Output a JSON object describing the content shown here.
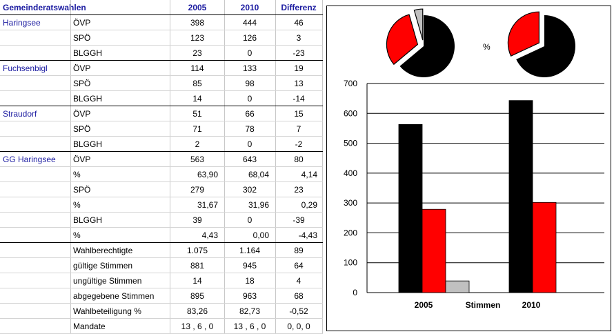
{
  "table": {
    "title": "Gemeinderatswahlen",
    "columns": [
      "2005",
      "2010",
      "Differenz"
    ],
    "rows": [
      {
        "group": "Haringsee",
        "label": "ÖVP",
        "v2005": "398",
        "v2010": "444",
        "diff": "46"
      },
      {
        "group": "",
        "label": "SPÖ",
        "v2005": "123",
        "v2010": "126",
        "diff": "3"
      },
      {
        "group": "",
        "label": "BLGGH",
        "v2005": "23",
        "v2010": "0",
        "diff": "-23"
      },
      {
        "group": "Fuchsenbigl",
        "label": "ÖVP",
        "v2005": "114",
        "v2010": "133",
        "diff": "19"
      },
      {
        "group": "",
        "label": "SPÖ",
        "v2005": "85",
        "v2010": "98",
        "diff": "13"
      },
      {
        "group": "",
        "label": "BLGGH",
        "v2005": "14",
        "v2010": "0",
        "diff": "-14"
      },
      {
        "group": "Straudorf",
        "label": "ÖVP",
        "v2005": "51",
        "v2010": "66",
        "diff": "15"
      },
      {
        "group": "",
        "label": "SPÖ",
        "v2005": "71",
        "v2010": "78",
        "diff": "7"
      },
      {
        "group": "",
        "label": "BLGGH",
        "v2005": "2",
        "v2010": "0",
        "diff": "-2"
      },
      {
        "group": "GG Haringsee",
        "label": "ÖVP",
        "v2005": "563",
        "v2010": "643",
        "diff": "80"
      },
      {
        "group": "",
        "label": "%",
        "v2005": "63,90",
        "v2010": "68,04",
        "diff": "4,14"
      },
      {
        "group": "",
        "label": "SPÖ",
        "v2005": "279",
        "v2010": "302",
        "diff": "23"
      },
      {
        "group": "",
        "label": "%",
        "v2005": "31,67",
        "v2010": "31,96",
        "diff": "0,29"
      },
      {
        "group": "",
        "label": "BLGGH",
        "v2005": "39",
        "v2010": "0",
        "diff": "-39"
      },
      {
        "group": "",
        "label": "%",
        "v2005": "4,43",
        "v2010": "0,00",
        "diff": "-4,43"
      },
      {
        "group": "",
        "label": "Wahlberechtigte",
        "v2005": "1.075",
        "v2010": "1.164",
        "diff": "89"
      },
      {
        "group": "",
        "label": "gültige Stimmen",
        "v2005": "881",
        "v2010": "945",
        "diff": "64"
      },
      {
        "group": "",
        "label": "ungültige Stimmen",
        "v2005": "14",
        "v2010": "18",
        "diff": "4"
      },
      {
        "group": "",
        "label": "abgegebene Stimmen",
        "v2005": "895",
        "v2010": "963",
        "diff": "68"
      },
      {
        "group": "",
        "label": "Wahlbeteiligung %",
        "v2005": "83,26",
        "v2010": "82,73",
        "diff": "-0,52"
      },
      {
        "group": "",
        "label": "Mandate",
        "v2005": "13 , 6 , 0",
        "v2010": "13 , 6 , 0",
        "diff": "0, 0, 0"
      }
    ]
  },
  "colors": {
    "oevp": "#000000",
    "spoe": "#ff0000",
    "blggh": "#c0c0c0",
    "header_text": "#1a1aa0"
  },
  "chart_data": [
    {
      "type": "pie",
      "title": "",
      "categories": [
        "ÖVP",
        "SPÖ",
        "BLGGH"
      ],
      "values": [
        63.9,
        31.67,
        4.43
      ]
    },
    {
      "type": "pie",
      "title": "",
      "categories": [
        "ÖVP",
        "SPÖ",
        "BLGGH"
      ],
      "values": [
        68.04,
        31.96,
        0.0
      ]
    },
    {
      "type": "bar",
      "title": "",
      "categories": [
        "2005",
        "2010"
      ],
      "series": [
        {
          "values": [
            563,
            643
          ]
        },
        {
          "values": [
            279,
            302
          ]
        },
        {
          "values": [
            39,
            0
          ]
        }
      ],
      "xlabel": "Stimmen",
      "ylabel": "",
      "ylim": [
        0,
        700
      ],
      "yticks": [
        0,
        100,
        200,
        300,
        400,
        500,
        600,
        700
      ],
      "grid": true
    }
  ],
  "pie_label": "%"
}
